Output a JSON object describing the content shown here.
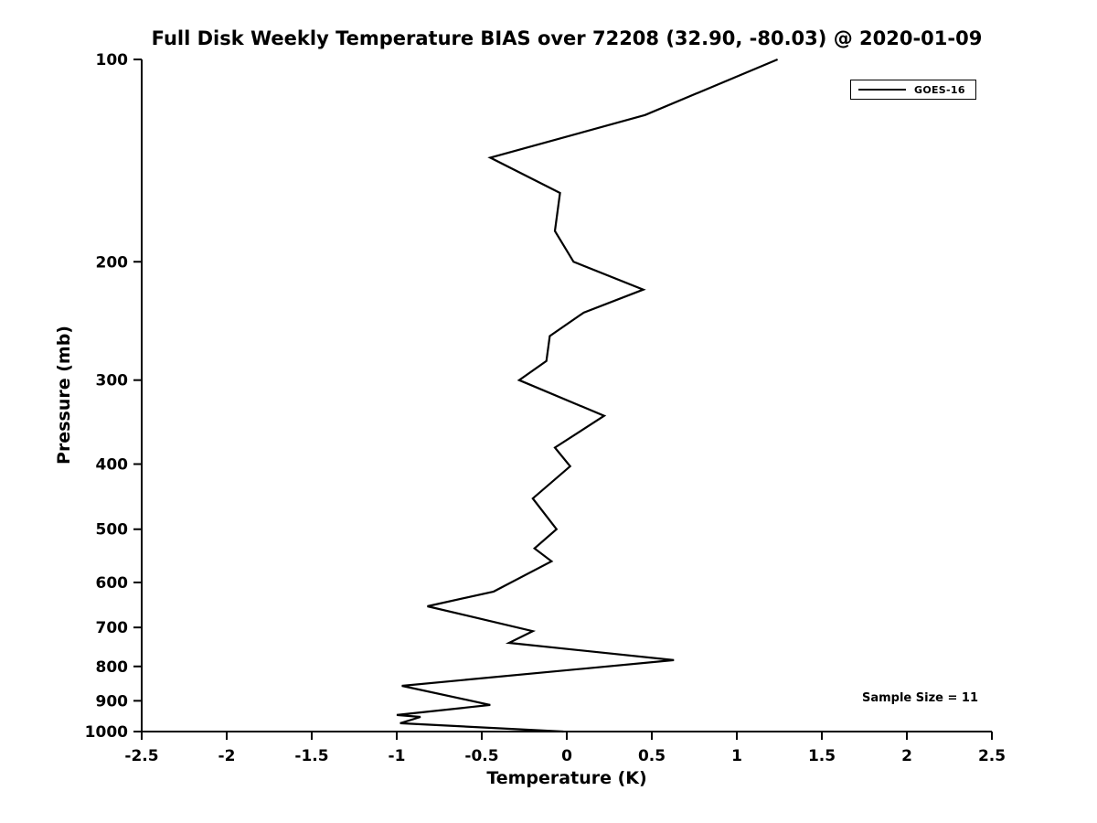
{
  "title": "Full Disk Weekly Temperature BIAS over 72208 (32.90, -80.03) @ 2020-01-09",
  "annotations": {
    "sample_size": "Sample Size = 11"
  },
  "legend": {
    "entries": [
      {
        "label": "GOES-16",
        "color": "#000000"
      }
    ]
  },
  "colors": {
    "line": "#000000",
    "axis": "#000000",
    "background": "#ffffff",
    "text": "#000000"
  },
  "chart_data": {
    "type": "line",
    "title": "Full Disk Weekly Temperature BIAS over 72208 (32.90, -80.03) @ 2020-01-09",
    "xlabel": "Temperature (K)",
    "ylabel": "Pressure (mb)",
    "xlim": [
      -2.5,
      2.5
    ],
    "ylim": [
      100,
      1000
    ],
    "x_scale": "linear",
    "y_scale": "log",
    "y_inverted": true,
    "grid": false,
    "legend_position": "top-right",
    "x_ticks": [
      -2.5,
      -2,
      -1.5,
      -1,
      -0.5,
      0,
      0.5,
      1,
      1.5,
      2,
      2.5
    ],
    "y_ticks": [
      100,
      200,
      300,
      400,
      500,
      600,
      700,
      800,
      900,
      1000
    ],
    "series": [
      {
        "name": "GOES-16",
        "color": "#000000",
        "points_format": "[pressure_mb, temperature_bias_K]",
        "points": [
          [
            100,
            1.24
          ],
          [
            121,
            0.46
          ],
          [
            140,
            -0.45
          ],
          [
            158,
            -0.04
          ],
          [
            180,
            -0.07
          ],
          [
            200,
            0.04
          ],
          [
            220,
            0.45
          ],
          [
            238,
            0.1
          ],
          [
            258,
            -0.1
          ],
          [
            281,
            -0.12
          ],
          [
            300,
            -0.28
          ],
          [
            339,
            0.22
          ],
          [
            378,
            -0.07
          ],
          [
            403,
            0.02
          ],
          [
            450,
            -0.2
          ],
          [
            500,
            -0.06
          ],
          [
            534,
            -0.19
          ],
          [
            558,
            -0.09
          ],
          [
            619,
            -0.43
          ],
          [
            651,
            -0.82
          ],
          [
            709,
            -0.2
          ],
          [
            738,
            -0.34
          ],
          [
            783,
            0.63
          ],
          [
            855,
            -0.97
          ],
          [
            913,
            -0.45
          ],
          [
            945,
            -1.0
          ],
          [
            951,
            -0.86
          ],
          [
            972,
            -0.98
          ],
          [
            1000,
            -0.02
          ]
        ]
      }
    ]
  }
}
